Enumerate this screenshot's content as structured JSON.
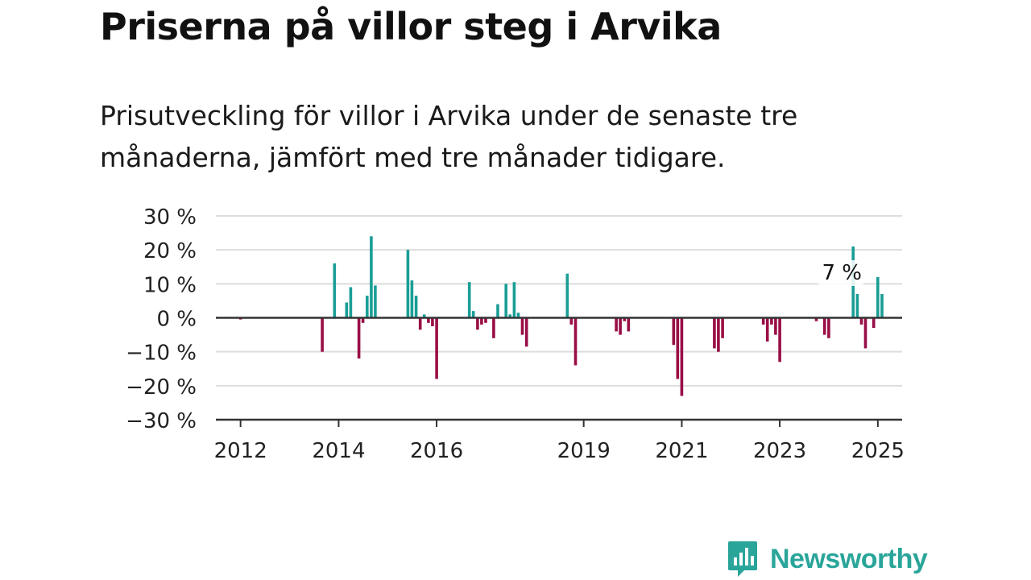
{
  "title": "Priserna på villor steg i Arvika",
  "subtitle": "Prisutveckling för villor i Arvika under de senaste tre månaderna, jämfört med tre månader tidigare.",
  "brand": {
    "name": "Newsworthy"
  },
  "colors": {
    "positive": "#1a9e96",
    "negative": "#990e46",
    "grid": "#dddddd",
    "axis": "#333333"
  },
  "chart_data": {
    "type": "bar",
    "yunit": "%",
    "ylim": [
      -30,
      30
    ],
    "yticks": [
      {
        "value": 30,
        "label": "30 %"
      },
      {
        "value": 20,
        "label": "20 %"
      },
      {
        "value": 10,
        "label": "10 %"
      },
      {
        "value": 0,
        "label": "0 %"
      },
      {
        "value": -10,
        "label": "−10 %"
      },
      {
        "value": -20,
        "label": "−20 %"
      },
      {
        "value": -30,
        "label": "−30 %"
      }
    ],
    "xrange": [
      "2011-07-01",
      "2025-07-01"
    ],
    "xticks": [
      {
        "date": "2012-01-01",
        "label": "2012"
      },
      {
        "date": "2014-01-01",
        "label": "2014"
      },
      {
        "date": "2016-01-01",
        "label": "2016"
      },
      {
        "date": "2019-01-01",
        "label": "2019"
      },
      {
        "date": "2021-01-01",
        "label": "2021"
      },
      {
        "date": "2023-01-01",
        "label": "2023"
      },
      {
        "date": "2025-01-01",
        "label": "2025"
      }
    ],
    "grid": true,
    "legend": "none",
    "series": [
      {
        "points": [
          {
            "date": "2012-01-01",
            "value": -0.5
          },
          {
            "date": "2013-09-01",
            "value": -10
          },
          {
            "date": "2013-12-01",
            "value": 16
          },
          {
            "date": "2014-03-01",
            "value": 4.5
          },
          {
            "date": "2014-04-01",
            "value": 9
          },
          {
            "date": "2014-06-01",
            "value": -12
          },
          {
            "date": "2014-07-01",
            "value": -1.5
          },
          {
            "date": "2014-08-01",
            "value": 6.5
          },
          {
            "date": "2014-09-01",
            "value": 24
          },
          {
            "date": "2014-10-01",
            "value": 9.5
          },
          {
            "date": "2015-06-01",
            "value": 20
          },
          {
            "date": "2015-07-01",
            "value": 11
          },
          {
            "date": "2015-08-01",
            "value": 6.5
          },
          {
            "date": "2015-09-01",
            "value": -3.5
          },
          {
            "date": "2015-10-01",
            "value": 1
          },
          {
            "date": "2015-11-01",
            "value": -1.5
          },
          {
            "date": "2015-12-01",
            "value": -2.5
          },
          {
            "date": "2016-01-01",
            "value": -18
          },
          {
            "date": "2016-09-01",
            "value": 10.5
          },
          {
            "date": "2016-10-01",
            "value": 2
          },
          {
            "date": "2016-11-01",
            "value": -3.5
          },
          {
            "date": "2016-12-01",
            "value": -2
          },
          {
            "date": "2017-01-01",
            "value": -1.5
          },
          {
            "date": "2017-03-01",
            "value": -6
          },
          {
            "date": "2017-04-01",
            "value": 4
          },
          {
            "date": "2017-06-01",
            "value": 10
          },
          {
            "date": "2017-07-01",
            "value": 1
          },
          {
            "date": "2017-08-01",
            "value": 10.5
          },
          {
            "date": "2017-09-01",
            "value": 1.5
          },
          {
            "date": "2017-10-01",
            "value": -5
          },
          {
            "date": "2017-11-01",
            "value": -8.5
          },
          {
            "date": "2018-09-01",
            "value": 13
          },
          {
            "date": "2018-10-01",
            "value": -2
          },
          {
            "date": "2018-11-01",
            "value": -14
          },
          {
            "date": "2019-09-01",
            "value": -4
          },
          {
            "date": "2019-10-01",
            "value": -5
          },
          {
            "date": "2019-11-01",
            "value": -1
          },
          {
            "date": "2019-12-01",
            "value": -4
          },
          {
            "date": "2020-11-01",
            "value": -8
          },
          {
            "date": "2020-12-01",
            "value": -18
          },
          {
            "date": "2021-01-01",
            "value": -23
          },
          {
            "date": "2021-09-01",
            "value": -9
          },
          {
            "date": "2021-10-01",
            "value": -10
          },
          {
            "date": "2021-11-01",
            "value": -6
          },
          {
            "date": "2022-09-01",
            "value": -2
          },
          {
            "date": "2022-10-01",
            "value": -7
          },
          {
            "date": "2022-11-01",
            "value": -2
          },
          {
            "date": "2022-12-01",
            "value": -5
          },
          {
            "date": "2023-01-01",
            "value": -13
          },
          {
            "date": "2023-10-01",
            "value": -1
          },
          {
            "date": "2023-12-01",
            "value": -5
          },
          {
            "date": "2024-01-01",
            "value": -6
          },
          {
            "date": "2024-07-01",
            "value": 21
          },
          {
            "date": "2024-08-01",
            "value": 7
          },
          {
            "date": "2024-09-01",
            "value": -2
          },
          {
            "date": "2024-10-01",
            "value": -9
          },
          {
            "date": "2024-12-01",
            "value": -3
          },
          {
            "date": "2025-01-01",
            "value": 12
          },
          {
            "date": "2025-02-01",
            "value": 7
          }
        ]
      }
    ],
    "annotation": {
      "date": "2025-02-01",
      "value": 7,
      "label": "7 %"
    }
  }
}
